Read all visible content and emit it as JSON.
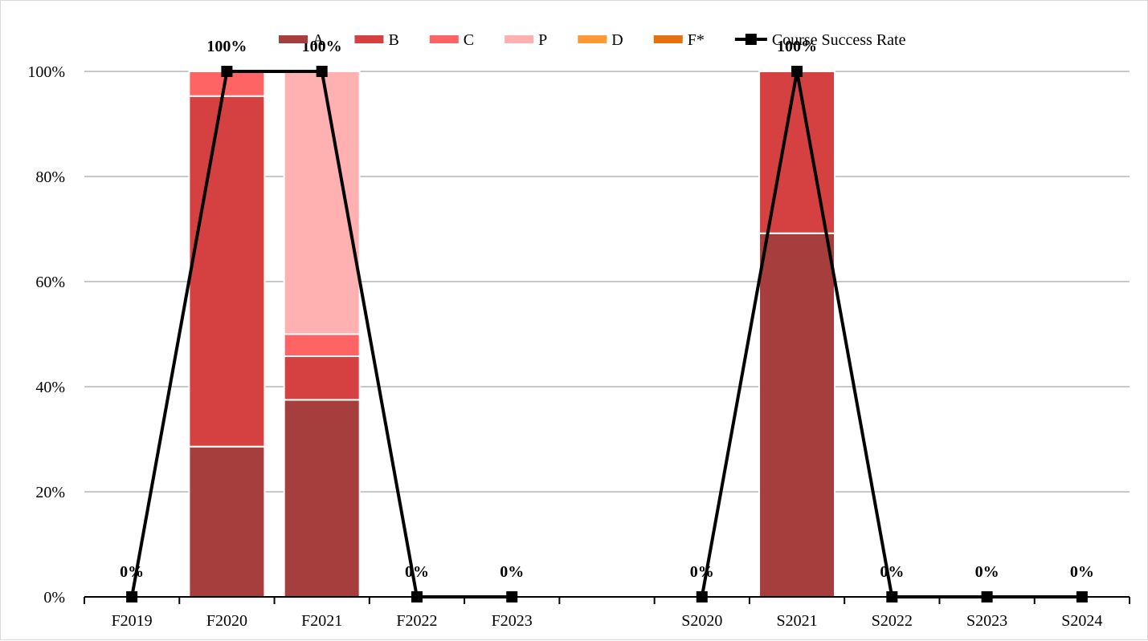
{
  "chart_data": {
    "type": "bar",
    "stacked": true,
    "categories": [
      "F2019",
      "F2020",
      "F2021",
      "F2022",
      "F2023",
      "",
      "S2020",
      "S2021",
      "S2022",
      "S2023",
      "S2024"
    ],
    "series": [
      {
        "name": "A",
        "color": "#a63e3e",
        "values": [
          0,
          28.6,
          37.5,
          0,
          0,
          null,
          0,
          69.2,
          0,
          0,
          0
        ]
      },
      {
        "name": "B",
        "color": "#d54141",
        "values": [
          0,
          66.7,
          8.3,
          0,
          0,
          null,
          0,
          30.8,
          0,
          0,
          0
        ]
      },
      {
        "name": "C",
        "color": "#ff6464",
        "values": [
          0,
          4.7,
          4.2,
          0,
          0,
          null,
          0,
          0,
          0,
          0,
          0
        ]
      },
      {
        "name": "P",
        "color": "#ffb1b1",
        "values": [
          0,
          0,
          50.0,
          0,
          0,
          null,
          0,
          0,
          0,
          0,
          0
        ]
      },
      {
        "name": "D",
        "color": "#ff9933",
        "values": [
          0,
          0,
          0,
          0,
          0,
          null,
          0,
          0,
          0,
          0,
          0
        ]
      },
      {
        "name": "F*",
        "color": "#e5700f",
        "values": [
          0,
          0,
          0,
          0,
          0,
          null,
          0,
          0,
          0,
          0,
          0
        ]
      }
    ],
    "line_series": {
      "name": "Course Success Rate",
      "color": "#000000",
      "values": [
        0,
        100,
        100,
        0,
        0,
        null,
        0,
        100,
        0,
        0,
        0
      ],
      "labels": [
        "0%",
        "100%",
        "100%",
        "0%",
        "0%",
        "",
        "0%",
        "100%",
        "0%",
        "0%",
        "0%"
      ]
    },
    "ylim": [
      0,
      100
    ],
    "y_ticks": [
      0,
      20,
      40,
      60,
      80,
      100
    ],
    "y_tick_labels": [
      "0%",
      "20%",
      "40%",
      "60%",
      "80%",
      "100%"
    ],
    "grid": true,
    "legend_position": "top"
  }
}
